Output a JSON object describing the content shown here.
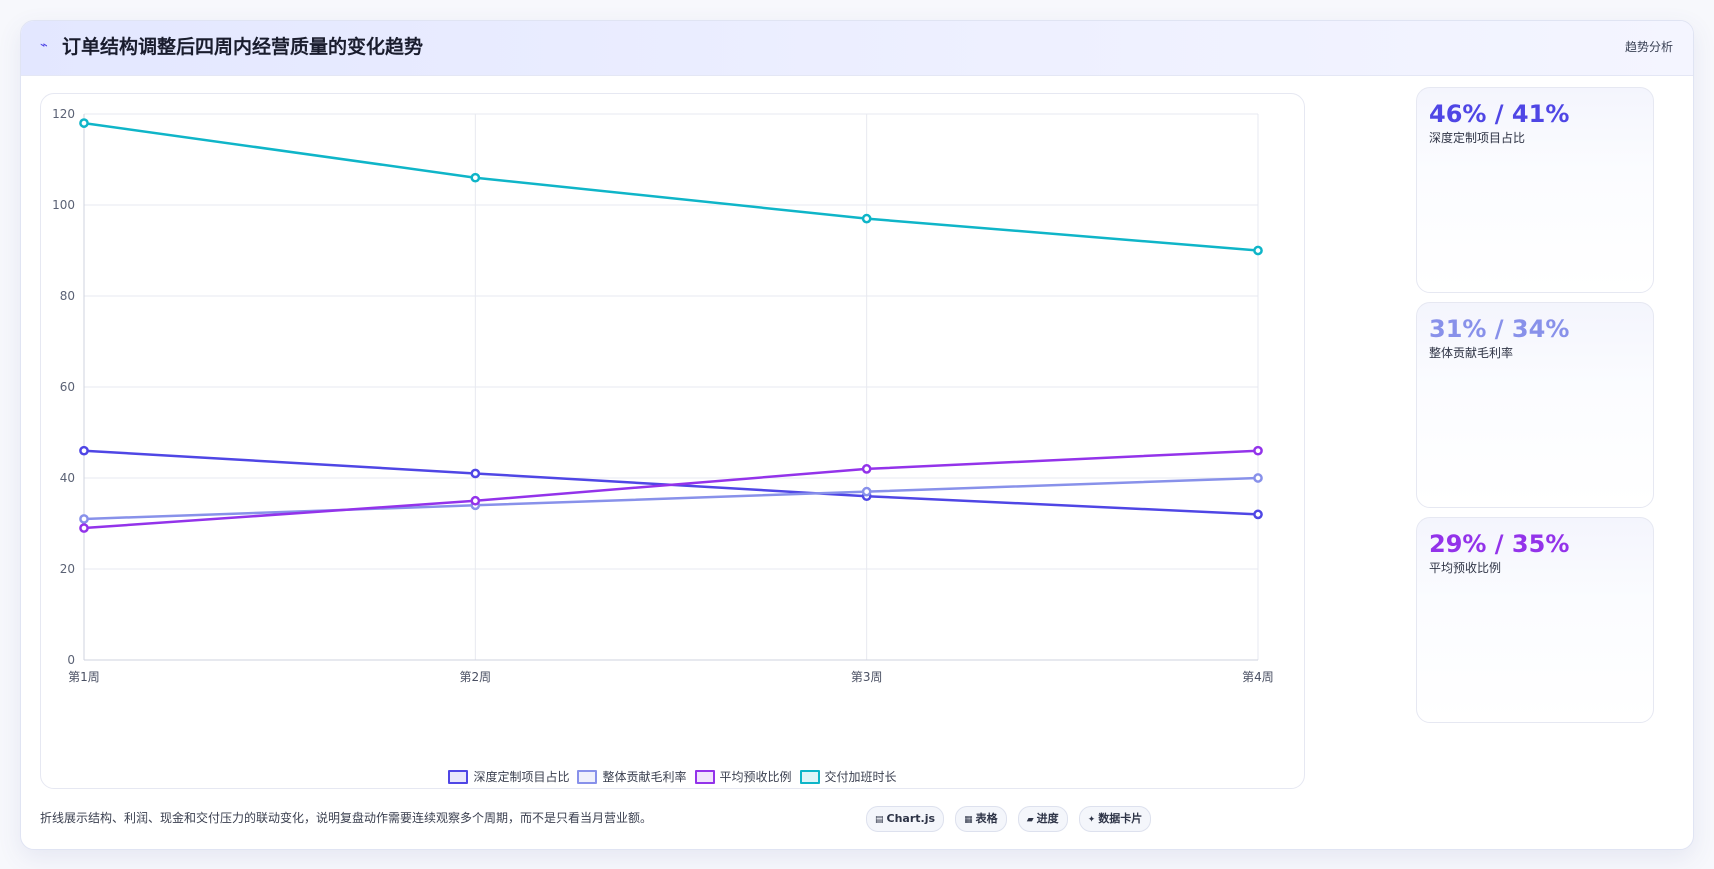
{
  "header": {
    "icon": "trend-line-icon",
    "title": "订单结构调整后四周内经营质量的变化趋势",
    "tag": "趋势分析"
  },
  "chart_data": {
    "type": "line",
    "title": "",
    "xlabel": "",
    "ylabel": "",
    "categories": [
      "第1周",
      "第2周",
      "第3周",
      "第4周"
    ],
    "ylim": [
      0,
      120
    ],
    "yticks": [
      0,
      20,
      40,
      60,
      80,
      100,
      120
    ],
    "grid": true,
    "legend": "bottom",
    "series": [
      {
        "name": "深度定制项目占比",
        "values": [
          46,
          41,
          36,
          32
        ],
        "color": "#4f46e5"
      },
      {
        "name": "整体贡献毛利率",
        "values": [
          31,
          34,
          37,
          40
        ],
        "color": "#8891ea"
      },
      {
        "name": "平均预收比例",
        "values": [
          29,
          35,
          42,
          46
        ],
        "color": "#9333ea"
      },
      {
        "name": "交付加班时长",
        "values": [
          118,
          106,
          97,
          90
        ],
        "color": "#0fb5c8"
      }
    ]
  },
  "kpis": [
    {
      "value": "46% / 41%",
      "label": "深度定制项目占比",
      "color": "#4f46e5"
    },
    {
      "value": "31% / 34%",
      "label": "整体贡献毛利率",
      "color": "#8891ea"
    },
    {
      "value": "29% / 35%",
      "label": "平均预收比例",
      "color": "#9333ea"
    }
  ],
  "footer": {
    "note": "折线展示结构、利润、现金和交付压力的联动变化，说明复盘动作需要连续观察多个周期，而不是只看当月营业额。",
    "badges": [
      {
        "icon": "chart-icon",
        "glyph": "▤",
        "label": "Chart.js"
      },
      {
        "icon": "table-icon",
        "glyph": "▦",
        "label": "表格"
      },
      {
        "icon": "progress-icon",
        "glyph": "▰",
        "label": "进度"
      },
      {
        "icon": "data-card-icon",
        "glyph": "✦",
        "label": "数据卡片"
      }
    ]
  }
}
